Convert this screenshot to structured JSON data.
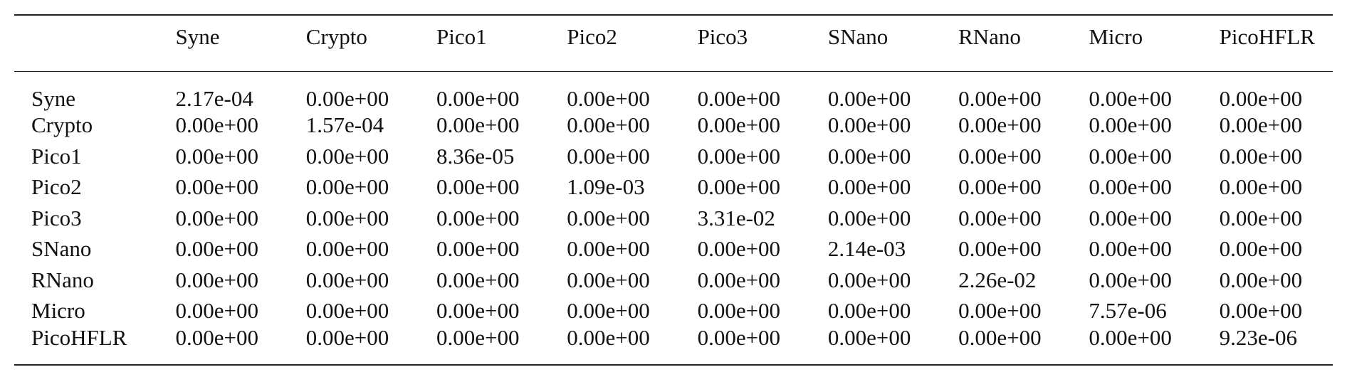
{
  "table": {
    "corner": "",
    "columns": [
      "Syne",
      "Crypto",
      "Pico1",
      "Pico2",
      "Pico3",
      "SNano",
      "RNano",
      "Micro",
      "PicoHFLR"
    ],
    "rows": [
      {
        "label": "Syne",
        "values": [
          "2.17e-04",
          "0.00e+00",
          "0.00e+00",
          "0.00e+00",
          "0.00e+00",
          "0.00e+00",
          "0.00e+00",
          "0.00e+00",
          "0.00e+00"
        ]
      },
      {
        "label": "Crypto",
        "values": [
          "0.00e+00",
          "1.57e-04",
          "0.00e+00",
          "0.00e+00",
          "0.00e+00",
          "0.00e+00",
          "0.00e+00",
          "0.00e+00",
          "0.00e+00"
        ]
      },
      {
        "label": "Pico1",
        "values": [
          "0.00e+00",
          "0.00e+00",
          "8.36e-05",
          "0.00e+00",
          "0.00e+00",
          "0.00e+00",
          "0.00e+00",
          "0.00e+00",
          "0.00e+00"
        ]
      },
      {
        "label": "Pico2",
        "values": [
          "0.00e+00",
          "0.00e+00",
          "0.00e+00",
          "1.09e-03",
          "0.00e+00",
          "0.00e+00",
          "0.00e+00",
          "0.00e+00",
          "0.00e+00"
        ]
      },
      {
        "label": "Pico3",
        "values": [
          "0.00e+00",
          "0.00e+00",
          "0.00e+00",
          "0.00e+00",
          "3.31e-02",
          "0.00e+00",
          "0.00e+00",
          "0.00e+00",
          "0.00e+00"
        ]
      },
      {
        "label": "SNano",
        "values": [
          "0.00e+00",
          "0.00e+00",
          "0.00e+00",
          "0.00e+00",
          "0.00e+00",
          "2.14e-03",
          "0.00e+00",
          "0.00e+00",
          "0.00e+00"
        ]
      },
      {
        "label": "RNano",
        "values": [
          "0.00e+00",
          "0.00e+00",
          "0.00e+00",
          "0.00e+00",
          "0.00e+00",
          "0.00e+00",
          "2.26e-02",
          "0.00e+00",
          "0.00e+00"
        ]
      },
      {
        "label": "Micro",
        "values": [
          "0.00e+00",
          "0.00e+00",
          "0.00e+00",
          "0.00e+00",
          "0.00e+00",
          "0.00e+00",
          "0.00e+00",
          "7.57e-06",
          "0.00e+00"
        ]
      },
      {
        "label": "PicoHFLR",
        "values": [
          "0.00e+00",
          "0.00e+00",
          "0.00e+00",
          "0.00e+00",
          "0.00e+00",
          "0.00e+00",
          "0.00e+00",
          "0.00e+00",
          "9.23e-06"
        ]
      }
    ]
  }
}
